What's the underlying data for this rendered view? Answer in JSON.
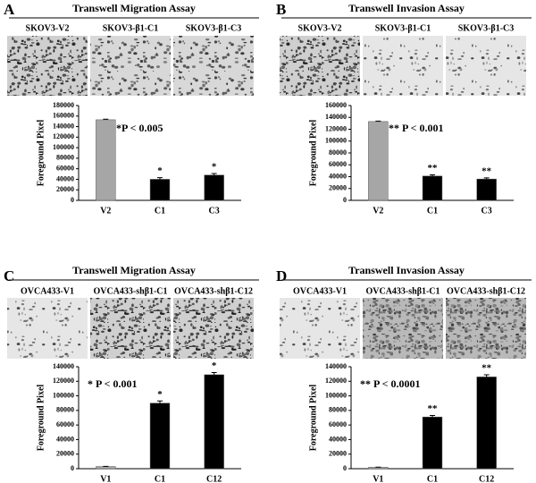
{
  "chart_data": [
    {
      "type": "bar",
      "panel_label": "A",
      "title": "Transwell Migration Assay",
      "image_labels": [
        "SKOV3-V2",
        "SKOV3-β1-C1",
        "SKOV3-β1-C3"
      ],
      "y_label": "Foreground Pixel",
      "annotation": "*P < 0.005",
      "categories": [
        "V2",
        "C1",
        "C3"
      ],
      "values": [
        153000,
        40000,
        48000
      ],
      "errors": [
        1000,
        3000,
        3000
      ],
      "markers": [
        null,
        "*",
        "*"
      ],
      "colors": [
        "#a6a6a6",
        "#000000",
        "#000000"
      ],
      "ylim": [
        0,
        180000
      ],
      "yticks": [
        0,
        20000,
        40000,
        60000,
        80000,
        100000,
        120000,
        140000,
        160000,
        180000
      ]
    },
    {
      "type": "bar",
      "panel_label": "B",
      "title": "Transwell Invasion Assay",
      "image_labels": [
        "SKOV3-V2",
        "SKOV3-β1-C1",
        "SKOV3-β1-C3"
      ],
      "y_label": "Foreground Pixel",
      "annotation": "** P < 0.001",
      "categories": [
        "V2",
        "C1",
        "C3"
      ],
      "values": [
        133000,
        41000,
        36000
      ],
      "errors": [
        800,
        2000,
        2000
      ],
      "markers": [
        null,
        "**",
        "**"
      ],
      "colors": [
        "#a6a6a6",
        "#000000",
        "#000000"
      ],
      "ylim": [
        0,
        160000
      ],
      "yticks": [
        0,
        20000,
        40000,
        60000,
        80000,
        100000,
        120000,
        140000,
        160000
      ]
    },
    {
      "type": "bar",
      "panel_label": "C",
      "title": "Transwell Migration Assay",
      "image_labels": [
        "OVCA433-V1",
        "OVCA433-shβ1-C1",
        "OVCA433-shβ1-C12"
      ],
      "y_label": "Foreground Pixel",
      "annotation": "* P < 0.001",
      "categories": [
        "V1",
        "C1",
        "C12"
      ],
      "values": [
        3000,
        90000,
        129000
      ],
      "errors": [
        300,
        3000,
        3000
      ],
      "markers": [
        null,
        "*",
        "*"
      ],
      "colors": [
        "#a6a6a6",
        "#000000",
        "#000000"
      ],
      "ylim": [
        0,
        140000
      ],
      "yticks": [
        0,
        20000,
        40000,
        60000,
        80000,
        100000,
        120000,
        140000
      ]
    },
    {
      "type": "bar",
      "panel_label": "D",
      "title": "Transwell Invasion Assay",
      "image_labels": [
        "OVCA433-V1",
        "OVCA433-shβ1-C1",
        "OVCA433-shβ1-C12"
      ],
      "y_label": "Foreground Pixel",
      "annotation": "** P < 0.0001",
      "categories": [
        "V1",
        "C1",
        "C12"
      ],
      "values": [
        2000,
        71000,
        126000
      ],
      "errors": [
        200,
        2000,
        3000
      ],
      "markers": [
        null,
        "**",
        "**"
      ],
      "colors": [
        "#a6a6a6",
        "#000000",
        "#000000"
      ],
      "ylim": [
        0,
        140000
      ],
      "yticks": [
        0,
        20000,
        40000,
        60000,
        80000,
        100000,
        120000,
        140000
      ]
    }
  ]
}
